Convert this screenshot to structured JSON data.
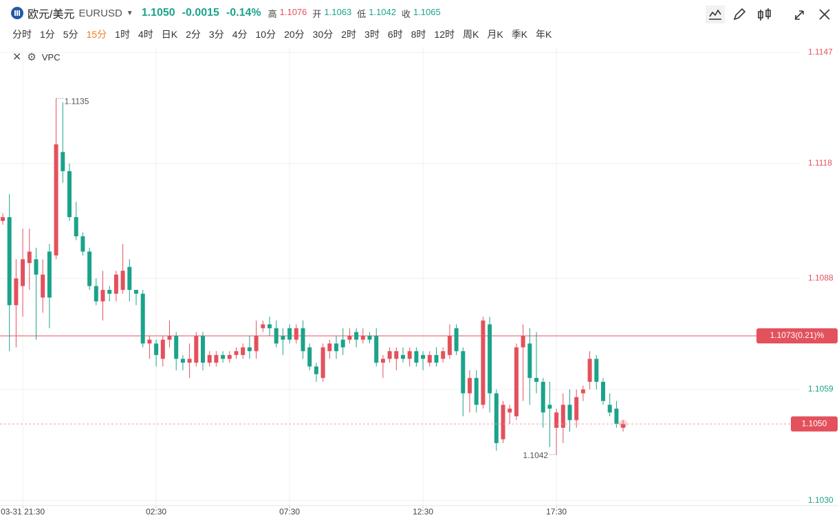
{
  "header": {
    "pair": "欧元/美元",
    "symbol": "EURUSD",
    "price": "1.1050",
    "change": "-0.0015",
    "change_pct": "-0.14%",
    "stats": [
      {
        "label": "高",
        "value": "1.1076"
      },
      {
        "label": "开",
        "value": "1.1063"
      },
      {
        "label": "低",
        "value": "1.1042"
      },
      {
        "label": "收",
        "value": "1.1065"
      }
    ]
  },
  "timeframes": [
    "分时",
    "1分",
    "5分",
    "15分",
    "1时",
    "4时",
    "日K",
    "2分",
    "3分",
    "4分",
    "10分",
    "20分",
    "30分",
    "2时",
    "3时",
    "6时",
    "8时",
    "12时",
    "周K",
    "月K",
    "季K",
    "年K"
  ],
  "active_timeframe_index": 3,
  "indicator": "VPC",
  "chart_data": {
    "type": "candlestick",
    "categories": [
      null,
      null,
      null,
      "03-31 21:30",
      null,
      null,
      null,
      null,
      null,
      null,
      null,
      null,
      null,
      null,
      null,
      null,
      null,
      null,
      null,
      null,
      null,
      null,
      null,
      "02:30",
      null,
      null,
      null,
      null,
      null,
      null,
      null,
      null,
      null,
      null,
      null,
      null,
      null,
      null,
      null,
      null,
      null,
      null,
      null,
      "07:30",
      null,
      null,
      null,
      null,
      null,
      null,
      null,
      null,
      null,
      null,
      null,
      null,
      null,
      null,
      null,
      null,
      null,
      null,
      null,
      "12:30",
      null,
      null,
      null,
      null,
      null,
      null,
      null,
      null,
      null,
      null,
      null,
      null,
      null,
      null,
      null,
      null,
      null,
      null,
      null,
      "17:30",
      null,
      null,
      null,
      null,
      null,
      null,
      null,
      null,
      null,
      null
    ],
    "open": [
      1.1103,
      1.1104,
      1.1081,
      1.1086,
      1.1092,
      1.1093,
      1.1083,
      1.1095,
      1.1094,
      1.1121,
      1.1116,
      1.1104,
      1.1099,
      1.1095,
      1.1086,
      1.1082,
      1.1085,
      1.1084,
      1.1085,
      1.1091,
      1.1085,
      1.1084,
      1.1071,
      1.1071,
      1.1067,
      1.1072,
      1.1073,
      1.1067,
      1.1066,
      1.1066,
      1.1073,
      1.1066,
      1.1066,
      1.1068,
      1.1067,
      1.1068,
      1.1068,
      1.107,
      1.1069,
      1.1075,
      1.1076,
      1.1075,
      1.1073,
      1.1075,
      1.1072,
      1.1075,
      1.107,
      1.1065,
      1.1062,
      1.1069,
      1.1071,
      1.1072,
      1.1072,
      1.1074,
      1.1072,
      1.1073,
      1.1073,
      1.1066,
      1.1067,
      1.1067,
      1.1068,
      1.1067,
      1.1069,
      1.1068,
      1.1066,
      1.1068,
      1.1067,
      1.1068,
      1.1075,
      1.1069,
      1.1058,
      1.1062,
      1.1055,
      1.1076,
      1.1058,
      1.1046,
      1.1053,
      1.1052,
      1.107,
      1.1071,
      1.1062,
      1.1061,
      1.1055,
      1.1049,
      1.1049,
      1.1055,
      1.1051,
      1.1058,
      1.1061,
      1.1067,
      1.1061,
      1.1055,
      1.1054,
      1.1049
    ],
    "high": [
      1.1105,
      1.111,
      1.1093,
      1.1101,
      1.1101,
      1.1096,
      1.1093,
      1.1097,
      1.1135,
      1.1134,
      1.1118,
      1.1108,
      1.11,
      1.1096,
      1.1088,
      1.109,
      1.1086,
      1.109,
      1.1097,
      1.1093,
      1.1085,
      1.1085,
      1.1073,
      1.1072,
      1.1073,
      1.1077,
      1.1074,
      1.1068,
      1.1071,
      1.1074,
      1.1074,
      1.1069,
      1.1069,
      1.1069,
      1.1069,
      1.107,
      1.1071,
      1.1073,
      1.1077,
      1.1077,
      1.1078,
      1.1077,
      1.1075,
      1.1076,
      1.1076,
      1.1077,
      1.1071,
      1.1066,
      1.1071,
      1.1072,
      1.1073,
      1.1075,
      1.1075,
      1.1075,
      1.1075,
      1.1074,
      1.1075,
      1.1068,
      1.107,
      1.107,
      1.107,
      1.107,
      1.107,
      1.1069,
      1.1069,
      1.107,
      1.107,
      1.1076,
      1.1076,
      1.107,
      1.1064,
      1.1064,
      1.1078,
      1.1078,
      1.1059,
      1.1056,
      1.1055,
      1.1071,
      1.1076,
      1.1075,
      1.1074,
      1.1062,
      1.1061,
      1.1054,
      1.1058,
      1.1059,
      1.1059,
      1.106,
      1.1069,
      1.1068,
      1.1062,
      1.1058,
      1.1056,
      1.1051
    ],
    "low": [
      1.1102,
      1.1069,
      1.107,
      1.1078,
      1.1085,
      1.1072,
      1.1079,
      1.1075,
      1.1093,
      1.1113,
      1.1103,
      1.1098,
      1.1094,
      1.1085,
      1.1081,
      1.1077,
      1.1082,
      1.1082,
      1.1084,
      1.1082,
      1.1081,
      1.107,
      1.1067,
      1.1065,
      1.1065,
      1.107,
      1.1064,
      1.1064,
      1.1062,
      1.1065,
      1.1064,
      1.1065,
      1.1065,
      1.1066,
      1.1066,
      1.1067,
      1.1067,
      1.1067,
      1.1067,
      1.1074,
      1.1073,
      1.107,
      1.1068,
      1.1071,
      1.1071,
      1.1067,
      1.1064,
      1.1061,
      1.1061,
      1.1067,
      1.1067,
      1.1068,
      1.1071,
      1.107,
      1.1071,
      1.1071,
      1.1065,
      1.1062,
      1.1066,
      1.1064,
      1.1066,
      1.1065,
      1.1065,
      1.1064,
      1.1065,
      1.1065,
      1.1066,
      1.1067,
      1.1068,
      1.1052,
      1.1053,
      1.1053,
      1.1054,
      1.1053,
      1.1043,
      1.1045,
      1.105,
      1.1051,
      1.1056,
      1.1055,
      1.1058,
      1.1049,
      1.1044,
      1.1042,
      1.1045,
      1.1048,
      1.1049,
      1.1056,
      1.1059,
      1.1059,
      1.1055,
      1.1052,
      1.1049,
      1.1048
    ],
    "close": [
      1.1104,
      1.1081,
      1.1088,
      1.1093,
      1.1095,
      1.1089,
      1.1089,
      1.1083,
      1.1123,
      1.1116,
      1.1104,
      1.1099,
      1.1095,
      1.1086,
      1.1082,
      1.1085,
      1.1084,
      1.1089,
      1.109,
      1.1085,
      1.1084,
      1.1071,
      1.1072,
      1.1068,
      1.1072,
      1.1073,
      1.1067,
      1.1066,
      1.1067,
      1.1073,
      1.1066,
      1.1068,
      1.1068,
      1.1067,
      1.1068,
      1.1069,
      1.107,
      1.1069,
      1.1073,
      1.1076,
      1.1075,
      1.1071,
      1.1072,
      1.1072,
      1.1075,
      1.1069,
      1.1065,
      1.1063,
      1.107,
      1.1071,
      1.1069,
      1.107,
      1.1073,
      1.1072,
      1.1073,
      1.1072,
      1.1066,
      1.1067,
      1.1069,
      1.1069,
      1.1067,
      1.1069,
      1.1066,
      1.1067,
      1.1068,
      1.1066,
      1.1069,
      1.1073,
      1.1069,
      1.1058,
      1.1062,
      1.1055,
      1.1077,
      1.1058,
      1.1045,
      1.1055,
      1.1054,
      1.107,
      1.1073,
      1.1062,
      1.1061,
      1.1053,
      1.1054,
      1.1053,
      1.1055,
      1.1051,
      1.1057,
      1.1059,
      1.1067,
      1.1061,
      1.1056,
      1.1053,
      1.105,
      1.105
    ],
    "ylim": [
      1.10287,
      1.11485
    ],
    "yticks": [
      1.1147,
      1.1118,
      1.1088,
      1.1059,
      {
        "value": 1.103,
        "label": "1.1030"
      }
    ],
    "grid": true,
    "up_color": "#e3515d",
    "down_color": "#1ba38a",
    "reference_line": {
      "value": 1.1073,
      "label": "1.1073(0.21)%"
    },
    "current_price": {
      "value": 1.105,
      "label": "1.1050"
    }
  }
}
